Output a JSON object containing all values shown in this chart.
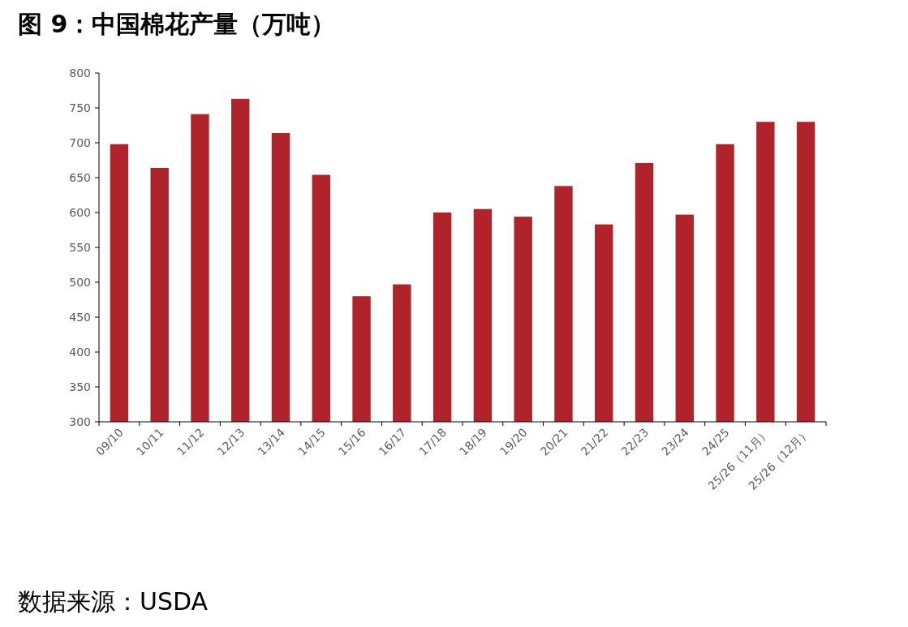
{
  "chart_data": {
    "type": "bar",
    "title": "图 9：中国棉花产量（万吨）",
    "categories": [
      "09/10",
      "10/11",
      "11/12",
      "12/13",
      "13/14",
      "14/15",
      "15/16",
      "16/17",
      "17/18",
      "18/19",
      "19/20",
      "20/21",
      "21/22",
      "22/23",
      "23/24",
      "24/25",
      "25/26（11月）",
      "25/26（12月）"
    ],
    "series": [
      {
        "color": "#b0232a",
        "values": [
          698,
          664,
          741,
          763,
          714,
          654,
          480,
          497,
          600,
          605,
          594,
          638,
          583,
          671,
          597,
          698,
          730,
          730
        ]
      }
    ],
    "ylim": [
      300,
      800
    ],
    "yticks": [
      300,
      350,
      400,
      450,
      500,
      550,
      600,
      650,
      700,
      750,
      800
    ],
    "grid": false,
    "annotations": [
      "数据来源：USDA"
    ]
  }
}
